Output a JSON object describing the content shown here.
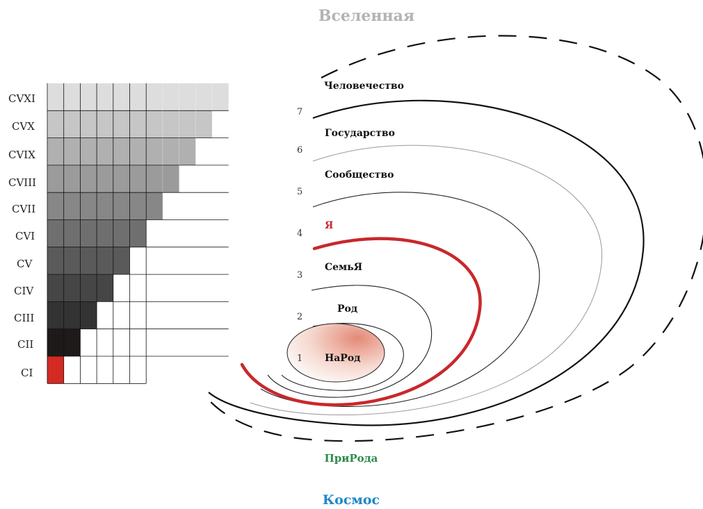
{
  "title": "Вселенная",
  "bottom_label": "Космос",
  "nature_label": "ПриРода",
  "colors": {
    "title": "#b3b3b3",
    "nature": "#2a8a4a",
    "cosmos": "#1f88c9",
    "self": "#c8282c",
    "grid_line": "#111111"
  },
  "grid": {
    "row_labels": [
      "CVXI",
      "CVX",
      "CVIX",
      "CVIII",
      "CVII",
      "CVI",
      "CV",
      "CIV",
      "CIII",
      "CII",
      "CI"
    ],
    "row_fill_cells": [
      11,
      10,
      9,
      8,
      7,
      6,
      5,
      4,
      3,
      2,
      1
    ],
    "row_colors": [
      "#dddddd",
      "#c6c6c6",
      "#b0b0b0",
      "#9b9b9b",
      "#878787",
      "#6f6f6f",
      "#5a5a5a",
      "#464646",
      "#333333",
      "#1e1a1a",
      "#d42a24"
    ]
  },
  "circles": [
    {
      "number": "7",
      "label": "Человечество"
    },
    {
      "number": "6",
      "label": "Государство"
    },
    {
      "number": "5",
      "label": "Сообщество"
    },
    {
      "number": "4",
      "label": "Я"
    },
    {
      "number": "3",
      "label": "СемьЯ"
    },
    {
      "number": "2",
      "label": "Род"
    },
    {
      "number": "1",
      "label": "НаРод"
    }
  ]
}
